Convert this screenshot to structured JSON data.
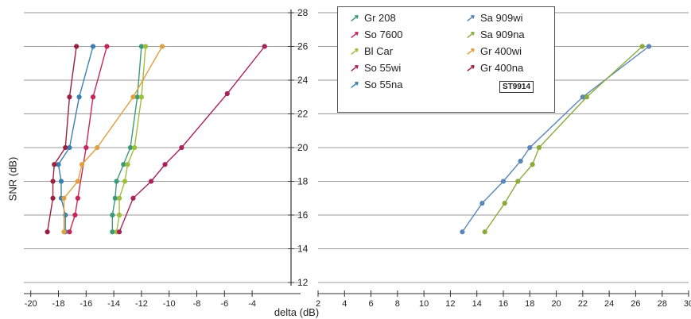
{
  "chart_data": {
    "type": "line",
    "xlabel": "delta (dB)",
    "ylabel": "SNR (dB)",
    "left_panel": {
      "xlim": [
        -20.5,
        -0.5
      ],
      "xticks": [
        -20,
        -18,
        -16,
        -14,
        -12,
        -10,
        -8,
        -6,
        -4
      ]
    },
    "right_panel": {
      "xlim": [
        2,
        30
      ],
      "xticks": [
        2,
        4,
        6,
        8,
        10,
        12,
        14,
        16,
        18,
        20,
        22,
        24,
        26,
        28,
        30
      ]
    },
    "ylim": [
      12,
      28
    ],
    "yticks": [
      12,
      14,
      16,
      18,
      20,
      22,
      24,
      26,
      28
    ],
    "grid": true,
    "legend_position": "top-center",
    "badge": "ST9914",
    "series": [
      {
        "name": "Gr 208",
        "color": "#3a9a7a",
        "points": [
          [
            -14.1,
            15
          ],
          [
            -14.1,
            16
          ],
          [
            -13.9,
            17
          ],
          [
            -13.8,
            18
          ],
          [
            -13.3,
            19
          ],
          [
            -12.8,
            20
          ],
          [
            -12.3,
            23
          ],
          [
            -12.0,
            26
          ]
        ]
      },
      {
        "name": "So 7600",
        "color": "#c8255a",
        "points": [
          [
            -17.2,
            15
          ],
          [
            -16.8,
            16
          ],
          [
            -16.6,
            17
          ],
          [
            -16.0,
            20
          ],
          [
            -15.5,
            23
          ],
          [
            -14.5,
            26
          ]
        ]
      },
      {
        "name": "Bl Car",
        "color": "#9fbf3a",
        "points": [
          [
            -13.8,
            15
          ],
          [
            -13.6,
            16
          ],
          [
            -13.6,
            17
          ],
          [
            -13.2,
            18
          ],
          [
            -13.0,
            19
          ],
          [
            -12.5,
            20
          ],
          [
            -12.0,
            23
          ],
          [
            -11.7,
            26
          ]
        ]
      },
      {
        "name": "So 55wi",
        "color": "#a9225a",
        "points": [
          [
            -13.6,
            15
          ],
          [
            -12.6,
            17
          ],
          [
            -11.3,
            18
          ],
          [
            -10.3,
            19
          ],
          [
            -9.1,
            20
          ],
          [
            -5.8,
            23.2
          ],
          [
            -3.1,
            26
          ]
        ]
      },
      {
        "name": "So 55na",
        "color": "#3a7fb0",
        "points": [
          [
            -17.5,
            15
          ],
          [
            -17.5,
            16
          ],
          [
            -17.8,
            17
          ],
          [
            -17.8,
            18
          ],
          [
            -18.0,
            19
          ],
          [
            -17.2,
            20
          ],
          [
            -16.5,
            23
          ],
          [
            -15.5,
            26
          ]
        ]
      },
      {
        "name": "Sa 909wi",
        "color": "#5a86b8",
        "points": [
          [
            12.9,
            15
          ],
          [
            14.4,
            16.7
          ],
          [
            16.0,
            18
          ],
          [
            17.3,
            19.2
          ],
          [
            18.0,
            20
          ],
          [
            22.0,
            23
          ],
          [
            27.0,
            26
          ]
        ]
      },
      {
        "name": "Sa 909na",
        "color": "#8aaa3a",
        "points": [
          [
            14.6,
            15
          ],
          [
            16.1,
            16.7
          ],
          [
            17.1,
            18
          ],
          [
            18.2,
            19
          ],
          [
            18.7,
            20
          ],
          [
            22.3,
            23
          ],
          [
            26.5,
            26
          ]
        ]
      },
      {
        "name": "Gr 400wi",
        "color": "#e0a040",
        "points": [
          [
            -17.6,
            15
          ],
          [
            -17.6,
            17
          ],
          [
            -16.6,
            18
          ],
          [
            -16.3,
            19
          ],
          [
            -15.2,
            20
          ],
          [
            -12.6,
            23
          ],
          [
            -10.5,
            26
          ]
        ]
      },
      {
        "name": "Gr 400na",
        "color": "#9a2040",
        "points": [
          [
            -18.8,
            15
          ],
          [
            -18.4,
            17
          ],
          [
            -18.4,
            18
          ],
          [
            -18.3,
            19
          ],
          [
            -17.5,
            20
          ],
          [
            -17.2,
            23
          ],
          [
            -16.7,
            26
          ]
        ]
      }
    ]
  }
}
